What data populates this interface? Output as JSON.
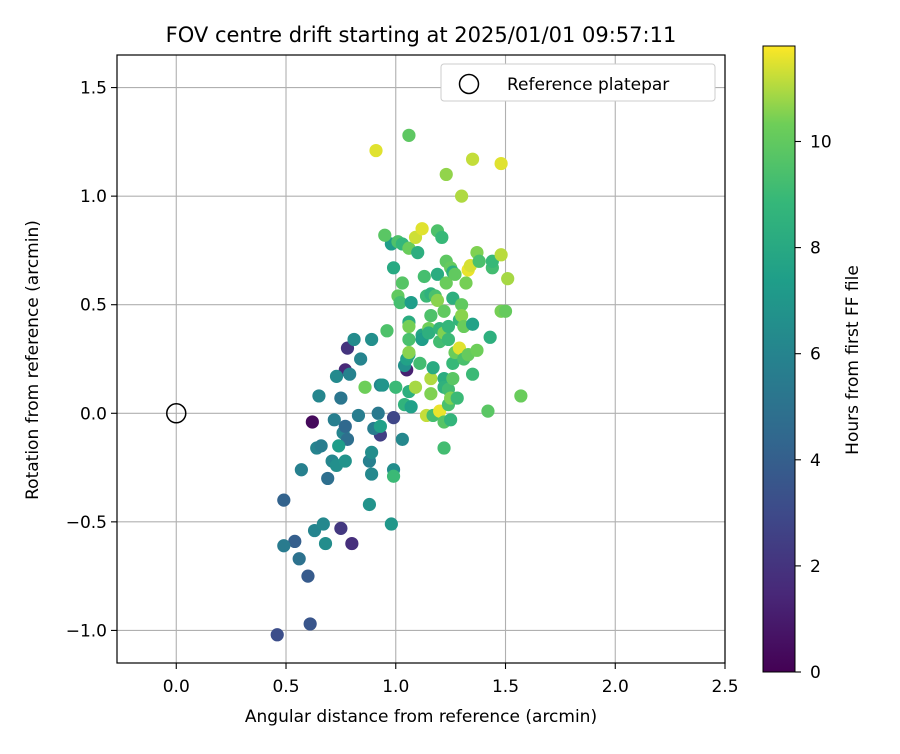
{
  "chart_data": {
    "type": "scatter",
    "title": "FOV centre drift starting at 2025/01/01 09:57:11",
    "xlabel": "Angular distance from reference (arcmin)",
    "ylabel": "Rotation from reference (arcmin)",
    "xlim": [
      -0.27,
      2.5
    ],
    "ylim": [
      -1.15,
      1.65
    ],
    "xticks": [
      0.0,
      0.5,
      1.0,
      1.5,
      2.0,
      2.5
    ],
    "xtick_labels": [
      "0.0",
      "0.5",
      "1.0",
      "1.5",
      "2.0",
      "2.5"
    ],
    "yticks": [
      -1.0,
      -0.5,
      0.0,
      0.5,
      1.0,
      1.5
    ],
    "ytick_labels": [
      "−1.0",
      "−0.5",
      "0.0",
      "0.5",
      "1.0",
      "1.5"
    ],
    "grid": true,
    "legend": {
      "placement": "top-right",
      "entries": [
        {
          "label": "Reference platepar",
          "marker": "open-circle"
        }
      ]
    },
    "reference_point": {
      "x": 0.0,
      "y": 0.0
    },
    "colorbar": {
      "label": "Hours from first FF file",
      "colormap": "viridis",
      "range": [
        0,
        11.8
      ],
      "ticks": [
        0,
        2,
        4,
        6,
        8,
        10
      ],
      "tick_labels": [
        "0",
        "2",
        "4",
        "6",
        "8",
        "10"
      ]
    },
    "points": [
      {
        "x": 0.62,
        "y": -0.04,
        "h": 0.3
      },
      {
        "x": 0.8,
        "y": -0.6,
        "h": 1.8
      },
      {
        "x": 0.75,
        "y": -0.53,
        "h": 2.2
      },
      {
        "x": 0.78,
        "y": 0.3,
        "h": 2.0
      },
      {
        "x": 0.77,
        "y": 0.2,
        "h": 1.5
      },
      {
        "x": 0.93,
        "y": -0.1,
        "h": 2.5
      },
      {
        "x": 0.99,
        "y": -0.02,
        "h": 2.8
      },
      {
        "x": 1.05,
        "y": 0.2,
        "h": 1.2
      },
      {
        "x": 0.46,
        "y": -1.02,
        "h": 3.2
      },
      {
        "x": 0.61,
        "y": -0.97,
        "h": 3.5
      },
      {
        "x": 0.6,
        "y": -0.75,
        "h": 3.8
      },
      {
        "x": 0.49,
        "y": -0.4,
        "h": 4.2
      },
      {
        "x": 0.54,
        "y": -0.59,
        "h": 4.0
      },
      {
        "x": 0.56,
        "y": -0.67,
        "h": 5.0
      },
      {
        "x": 0.49,
        "y": -0.61,
        "h": 5.5
      },
      {
        "x": 0.69,
        "y": -0.3,
        "h": 4.8
      },
      {
        "x": 0.57,
        "y": -0.26,
        "h": 5.8
      },
      {
        "x": 0.63,
        "y": -0.54,
        "h": 6.0
      },
      {
        "x": 0.67,
        "y": -0.51,
        "h": 6.2
      },
      {
        "x": 0.68,
        "y": -0.6,
        "h": 6.5
      },
      {
        "x": 0.64,
        "y": -0.16,
        "h": 6.0
      },
      {
        "x": 0.66,
        "y": -0.15,
        "h": 5.6
      },
      {
        "x": 0.71,
        "y": -0.22,
        "h": 6.1
      },
      {
        "x": 0.73,
        "y": -0.24,
        "h": 6.6
      },
      {
        "x": 0.76,
        "y": -0.09,
        "h": 6.0
      },
      {
        "x": 0.77,
        "y": -0.06,
        "h": 4.5
      },
      {
        "x": 0.78,
        "y": -0.12,
        "h": 4.8
      },
      {
        "x": 0.72,
        "y": -0.03,
        "h": 5.7
      },
      {
        "x": 0.75,
        "y": 0.07,
        "h": 5.2
      },
      {
        "x": 0.65,
        "y": 0.08,
        "h": 6.1
      },
      {
        "x": 0.73,
        "y": 0.17,
        "h": 6.3
      },
      {
        "x": 0.79,
        "y": 0.18,
        "h": 5.9
      },
      {
        "x": 0.81,
        "y": 0.34,
        "h": 6.4
      },
      {
        "x": 0.84,
        "y": 0.25,
        "h": 6.0
      },
      {
        "x": 0.83,
        "y": -0.01,
        "h": 5.6
      },
      {
        "x": 0.77,
        "y": -0.22,
        "h": 6.8
      },
      {
        "x": 0.74,
        "y": -0.15,
        "h": 7.3
      },
      {
        "x": 0.88,
        "y": -0.22,
        "h": 5.8
      },
      {
        "x": 0.89,
        "y": -0.18,
        "h": 6.5
      },
      {
        "x": 0.89,
        "y": -0.28,
        "h": 6.2
      },
      {
        "x": 0.88,
        "y": -0.42,
        "h": 6.8
      },
      {
        "x": 0.9,
        "y": -0.07,
        "h": 5.6
      },
      {
        "x": 0.92,
        "y": 0.0,
        "h": 5.4
      },
      {
        "x": 0.93,
        "y": -0.06,
        "h": 7.5
      },
      {
        "x": 0.93,
        "y": 0.13,
        "h": 6.1
      },
      {
        "x": 0.94,
        "y": 0.13,
        "h": 6.9
      },
      {
        "x": 0.89,
        "y": 0.34,
        "h": 6.6
      },
      {
        "x": 0.86,
        "y": 0.12,
        "h": 10.3
      },
      {
        "x": 0.98,
        "y": -0.51,
        "h": 7.0
      },
      {
        "x": 0.99,
        "y": -0.26,
        "h": 6.5
      },
      {
        "x": 0.99,
        "y": -0.29,
        "h": 9.0
      },
      {
        "x": 1.03,
        "y": -0.12,
        "h": 6.2
      },
      {
        "x": 1.0,
        "y": 0.12,
        "h": 9.0
      },
      {
        "x": 1.04,
        "y": 0.04,
        "h": 8.6
      },
      {
        "x": 1.04,
        "y": 0.22,
        "h": 6.7
      },
      {
        "x": 1.05,
        "y": 0.25,
        "h": 7.6
      },
      {
        "x": 1.06,
        "y": 0.27,
        "h": 7.7
      },
      {
        "x": 1.06,
        "y": 0.1,
        "h": 8.4
      },
      {
        "x": 1.07,
        "y": 0.03,
        "h": 7.5
      },
      {
        "x": 0.96,
        "y": 0.38,
        "h": 9.5
      },
      {
        "x": 0.99,
        "y": 0.67,
        "h": 8.0
      },
      {
        "x": 0.98,
        "y": 0.78,
        "h": 7.3
      },
      {
        "x": 0.95,
        "y": 0.82,
        "h": 9.8
      },
      {
        "x": 1.01,
        "y": 0.79,
        "h": 9.5
      },
      {
        "x": 1.03,
        "y": 0.78,
        "h": 8.8
      },
      {
        "x": 1.01,
        "y": 0.54,
        "h": 10.0
      },
      {
        "x": 1.02,
        "y": 0.51,
        "h": 9.3
      },
      {
        "x": 1.03,
        "y": 0.6,
        "h": 9.7
      },
      {
        "x": 1.06,
        "y": 0.76,
        "h": 10.2
      },
      {
        "x": 1.07,
        "y": 0.51,
        "h": 7.4
      },
      {
        "x": 1.06,
        "y": 0.42,
        "h": 8.2
      },
      {
        "x": 1.06,
        "y": 0.4,
        "h": 10.4
      },
      {
        "x": 1.06,
        "y": 0.34,
        "h": 9.4
      },
      {
        "x": 1.06,
        "y": 0.28,
        "h": 10.6
      },
      {
        "x": 1.09,
        "y": 0.12,
        "h": 10.9
      },
      {
        "x": 1.09,
        "y": 0.81,
        "h": 11.3
      },
      {
        "x": 1.1,
        "y": 0.74,
        "h": 8.3
      },
      {
        "x": 1.12,
        "y": 0.85,
        "h": 11.5
      },
      {
        "x": 1.06,
        "y": 1.28,
        "h": 9.9
      },
      {
        "x": 0.91,
        "y": 1.21,
        "h": 11.5
      },
      {
        "x": 1.12,
        "y": 0.36,
        "h": 7.8
      },
      {
        "x": 1.12,
        "y": 0.34,
        "h": 7.4
      },
      {
        "x": 1.11,
        "y": 0.23,
        "h": 9.2
      },
      {
        "x": 1.13,
        "y": 0.63,
        "h": 9.3
      },
      {
        "x": 1.14,
        "y": 0.54,
        "h": 9.0
      },
      {
        "x": 1.15,
        "y": 0.39,
        "h": 10.3
      },
      {
        "x": 1.15,
        "y": 0.37,
        "h": 8.4
      },
      {
        "x": 1.16,
        "y": 0.55,
        "h": 8.5
      },
      {
        "x": 1.16,
        "y": 0.45,
        "h": 9.5
      },
      {
        "x": 1.16,
        "y": 0.16,
        "h": 11.0
      },
      {
        "x": 1.16,
        "y": 0.09,
        "h": 10.5
      },
      {
        "x": 1.14,
        "y": -0.01,
        "h": 11.2
      },
      {
        "x": 1.17,
        "y": 0.21,
        "h": 8.1
      },
      {
        "x": 1.17,
        "y": -0.01,
        "h": 9.3
      },
      {
        "x": 1.18,
        "y": 0.54,
        "h": 9.4
      },
      {
        "x": 1.19,
        "y": 0.64,
        "h": 8.2
      },
      {
        "x": 1.19,
        "y": 0.52,
        "h": 10.6
      },
      {
        "x": 1.19,
        "y": 0.84,
        "h": 9.5
      },
      {
        "x": 1.2,
        "y": 0.39,
        "h": 8.7
      },
      {
        "x": 1.2,
        "y": 0.33,
        "h": 9.2
      },
      {
        "x": 1.2,
        "y": 0.01,
        "h": 11.6
      },
      {
        "x": 1.21,
        "y": 0.81,
        "h": 8.9
      },
      {
        "x": 1.22,
        "y": 0.47,
        "h": 10.0
      },
      {
        "x": 1.22,
        "y": 0.37,
        "h": 10.5
      },
      {
        "x": 1.22,
        "y": 0.16,
        "h": 8.2
      },
      {
        "x": 1.22,
        "y": 0.12,
        "h": 8.5
      },
      {
        "x": 1.22,
        "y": -0.04,
        "h": 9.7
      },
      {
        "x": 1.22,
        "y": -0.16,
        "h": 9.2
      },
      {
        "x": 1.23,
        "y": 0.7,
        "h": 9.9
      },
      {
        "x": 1.23,
        "y": 0.6,
        "h": 10.2
      },
      {
        "x": 1.23,
        "y": 1.1,
        "h": 10.7
      },
      {
        "x": 1.24,
        "y": 0.4,
        "h": 8.8
      },
      {
        "x": 1.24,
        "y": 0.34,
        "h": 9.0
      },
      {
        "x": 1.24,
        "y": 0.11,
        "h": 9.2
      },
      {
        "x": 1.24,
        "y": 0.04,
        "h": 9.4
      },
      {
        "x": 1.25,
        "y": 0.67,
        "h": 10.1
      },
      {
        "x": 1.25,
        "y": 0.07,
        "h": 10.5
      },
      {
        "x": 1.25,
        "y": -0.03,
        "h": 8.7
      },
      {
        "x": 1.26,
        "y": 0.16,
        "h": 9.8
      },
      {
        "x": 1.26,
        "y": 0.23,
        "h": 8.9
      },
      {
        "x": 1.26,
        "y": 0.53,
        "h": 8.4
      },
      {
        "x": 1.26,
        "y": 0.65,
        "h": 8.3
      },
      {
        "x": 1.27,
        "y": 0.64,
        "h": 10.0
      },
      {
        "x": 1.27,
        "y": 0.28,
        "h": 10.2
      },
      {
        "x": 1.28,
        "y": 0.07,
        "h": 9.0
      },
      {
        "x": 1.29,
        "y": 0.3,
        "h": 11.5
      },
      {
        "x": 1.29,
        "y": 0.43,
        "h": 8.7
      },
      {
        "x": 1.3,
        "y": 0.5,
        "h": 10.0
      },
      {
        "x": 1.3,
        "y": 0.45,
        "h": 10.6
      },
      {
        "x": 1.3,
        "y": 1.0,
        "h": 11.0
      },
      {
        "x": 1.31,
        "y": 0.4,
        "h": 10.2
      },
      {
        "x": 1.31,
        "y": 0.25,
        "h": 9.4
      },
      {
        "x": 1.32,
        "y": 0.6,
        "h": 10.4
      },
      {
        "x": 1.33,
        "y": 0.27,
        "h": 10.1
      },
      {
        "x": 1.33,
        "y": 0.66,
        "h": 11.6
      },
      {
        "x": 1.34,
        "y": 0.68,
        "h": 11.4
      },
      {
        "x": 1.35,
        "y": 1.17,
        "h": 11.2
      },
      {
        "x": 1.35,
        "y": 0.18,
        "h": 9.0
      },
      {
        "x": 1.35,
        "y": 0.41,
        "h": 7.6
      },
      {
        "x": 1.37,
        "y": 0.74,
        "h": 10.5
      },
      {
        "x": 1.37,
        "y": 0.29,
        "h": 10.3
      },
      {
        "x": 1.38,
        "y": 0.7,
        "h": 9.4
      },
      {
        "x": 1.42,
        "y": 0.01,
        "h": 9.8
      },
      {
        "x": 1.43,
        "y": 0.35,
        "h": 8.4
      },
      {
        "x": 1.44,
        "y": 0.67,
        "h": 9.2
      },
      {
        "x": 1.44,
        "y": 0.7,
        "h": 8.9
      },
      {
        "x": 1.48,
        "y": 0.47,
        "h": 10.4
      },
      {
        "x": 1.48,
        "y": 0.73,
        "h": 11.1
      },
      {
        "x": 1.48,
        "y": 1.15,
        "h": 11.5
      },
      {
        "x": 1.5,
        "y": 0.47,
        "h": 10.1
      },
      {
        "x": 1.51,
        "y": 0.62,
        "h": 10.9
      },
      {
        "x": 1.57,
        "y": 0.08,
        "h": 10.2
      }
    ]
  }
}
